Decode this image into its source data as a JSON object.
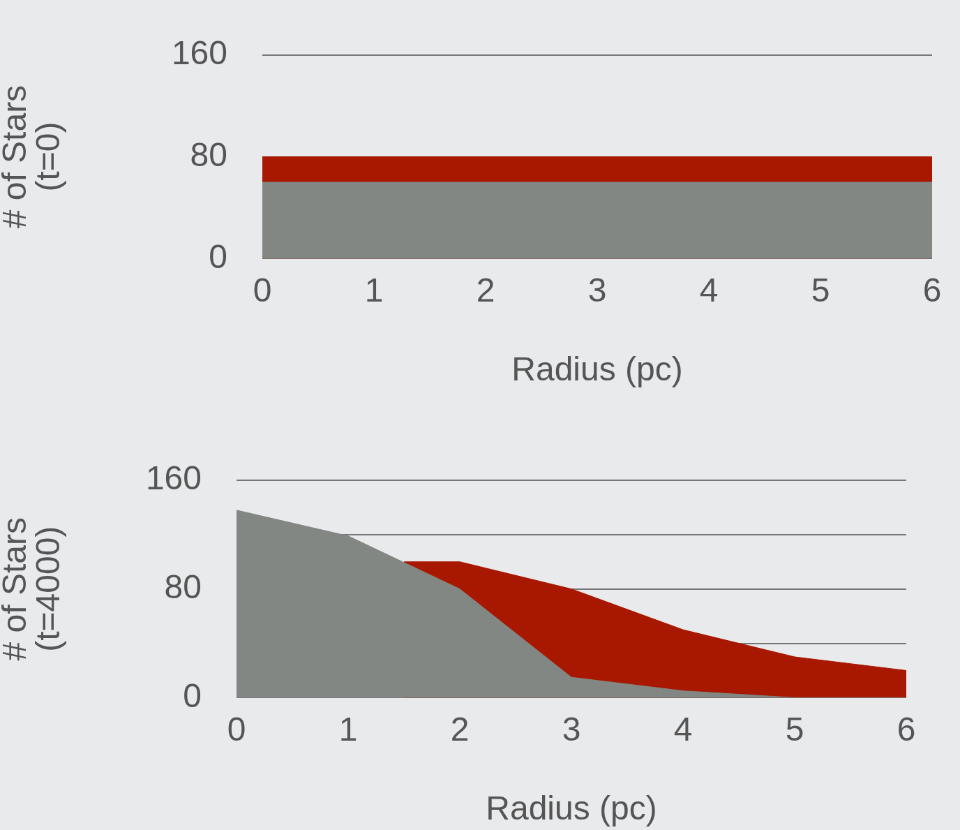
{
  "chart_data": [
    {
      "type": "area",
      "ylabel": "# of Stars\n(t=0)",
      "xlabel": "Radius (pc)",
      "x": [
        0,
        1,
        2,
        3,
        4,
        5,
        6
      ],
      "series": [
        {
          "color": "#828784",
          "values": [
            60,
            60,
            60,
            60,
            60,
            60,
            60
          ]
        },
        {
          "color": "#a81800",
          "values": [
            80,
            80,
            80,
            80,
            80,
            80,
            80
          ]
        }
      ],
      "xlim": [
        0,
        6
      ],
      "xticks": [
        0,
        1,
        2,
        3,
        4,
        5,
        6
      ],
      "ylim": [
        0,
        160
      ],
      "yticks": [
        0,
        80,
        160
      ],
      "grid": "y"
    },
    {
      "type": "area",
      "ylabel": "# of Stars\n(t=4000)",
      "xlabel": "Radius (pc)",
      "x": [
        0,
        1,
        2,
        3,
        4,
        5,
        6
      ],
      "series": [
        {
          "color": "#828784",
          "values": [
            138,
            119,
            80,
            15,
            5,
            0,
            0
          ]
        },
        {
          "color": "#a81800",
          "x": [
            1.5,
            2,
            3,
            4,
            5,
            6
          ],
          "values": [
            100,
            100,
            80,
            50,
            30,
            20
          ]
        }
      ],
      "xlim": [
        0,
        6
      ],
      "xticks": [
        0,
        1,
        2,
        3,
        4,
        5,
        6
      ],
      "ylim": [
        0,
        160
      ],
      "yticks": [
        0,
        {
          "value": 40,
          "label": null
        },
        80,
        {
          "value": 120,
          "label": null
        },
        160
      ],
      "grid": "y"
    }
  ]
}
